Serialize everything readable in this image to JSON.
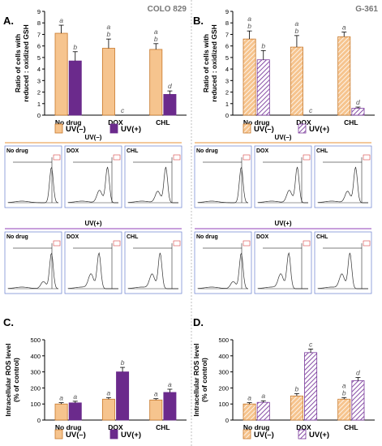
{
  "colors": {
    "uv_minus_fill": "#f6c48e",
    "uv_minus_stroke": "#c8782a",
    "uv_plus_colo": "#6b2a8c",
    "uv_plus_g361_stroke": "#7a3a9c",
    "uv_minus_line": "#f0b77a",
    "uv_plus_line": "#b680d0",
    "axis": "#000000",
    "letters": "#555555",
    "cell_line": "#777777",
    "hist_frame": "#6a7fd0",
    "hist_red": "#d02020"
  },
  "panel_labels": [
    "A.",
    "B.",
    "C.",
    "D."
  ],
  "cell_lines": [
    "COLO 829",
    "G-361"
  ],
  "legend": {
    "uv_minus": "UV(–)",
    "uv_plus": "UV(+)"
  },
  "flow_panels": {
    "row_titles": [
      "UV(–)",
      "UV(+)"
    ],
    "col_titles": [
      "No drug",
      "DOX",
      "CHL"
    ]
  },
  "chart_data": [
    {
      "id": "A",
      "type": "bar",
      "cell_line": "COLO 829",
      "ylabel": "Ratio of cells with\nreduced : oxidized GSH",
      "ylim": [
        0,
        9
      ],
      "yticks": [
        0,
        1,
        2,
        3,
        4,
        5,
        6,
        7,
        8,
        9
      ],
      "categories": [
        "No drug",
        "DOX",
        "CHL"
      ],
      "series": [
        {
          "name": "UV(–)",
          "values": [
            7.1,
            5.8,
            5.7
          ],
          "errors": [
            0.7,
            0.8,
            0.5
          ],
          "letters": [
            "a",
            "a\nb",
            "a\nb"
          ]
        },
        {
          "name": "UV(+)",
          "values": [
            4.7,
            0.0,
            1.8
          ],
          "errors": [
            0.8,
            0,
            0.3
          ],
          "letters": [
            "b",
            "c",
            "d"
          ]
        }
      ]
    },
    {
      "id": "B",
      "type": "bar",
      "cell_line": "G-361",
      "ylabel": "Ratio of cells with\nreduced : oxidized GSH",
      "ylim": [
        0,
        9
      ],
      "yticks": [
        0,
        1,
        2,
        3,
        4,
        5,
        6,
        7,
        8,
        9
      ],
      "categories": [
        "No drug",
        "DOX",
        "CHL"
      ],
      "series": [
        {
          "name": "UV(–)",
          "values": [
            6.6,
            5.9,
            6.8
          ],
          "errors": [
            0.7,
            1.0,
            0.4
          ],
          "letters": [
            "a\nb",
            "a\nb",
            "a"
          ]
        },
        {
          "name": "UV(+)",
          "values": [
            4.8,
            0.0,
            0.6
          ],
          "errors": [
            0.8,
            0,
            0.1
          ],
          "letters": [
            "b",
            "c",
            "d"
          ]
        }
      ]
    },
    {
      "id": "C",
      "type": "bar",
      "cell_line": "COLO 829",
      "ylabel": "Intracellular ROS level\n(% of control)",
      "ylim": [
        0,
        500
      ],
      "yticks": [
        0,
        100,
        200,
        300,
        400,
        500
      ],
      "categories": [
        "No drug",
        "DOX",
        "CHL"
      ],
      "series": [
        {
          "name": "UV(–)",
          "values": [
            100,
            130,
            125
          ],
          "errors": [
            8,
            10,
            8
          ],
          "letters": [
            "a",
            "a",
            "a"
          ]
        },
        {
          "name": "UV(+)",
          "values": [
            107,
            300,
            172
          ],
          "errors": [
            10,
            28,
            20
          ],
          "letters": [
            "a",
            "b",
            "a"
          ]
        }
      ]
    },
    {
      "id": "D",
      "type": "bar",
      "cell_line": "G-361",
      "ylabel": "Intracellular ROS level\n(% of control)",
      "ylim": [
        0,
        500
      ],
      "yticks": [
        0,
        100,
        200,
        300,
        400,
        500
      ],
      "categories": [
        "No drug",
        "DOX",
        "CHL"
      ],
      "series": [
        {
          "name": "UV(–)",
          "values": [
            100,
            150,
            130
          ],
          "errors": [
            8,
            15,
            10
          ],
          "letters": [
            "a",
            "b",
            "a\nb"
          ]
        },
        {
          "name": "UV(+)",
          "values": [
            110,
            420,
            245
          ],
          "errors": [
            10,
            22,
            20
          ],
          "letters": [
            "a",
            "c",
            "d"
          ]
        }
      ]
    }
  ]
}
